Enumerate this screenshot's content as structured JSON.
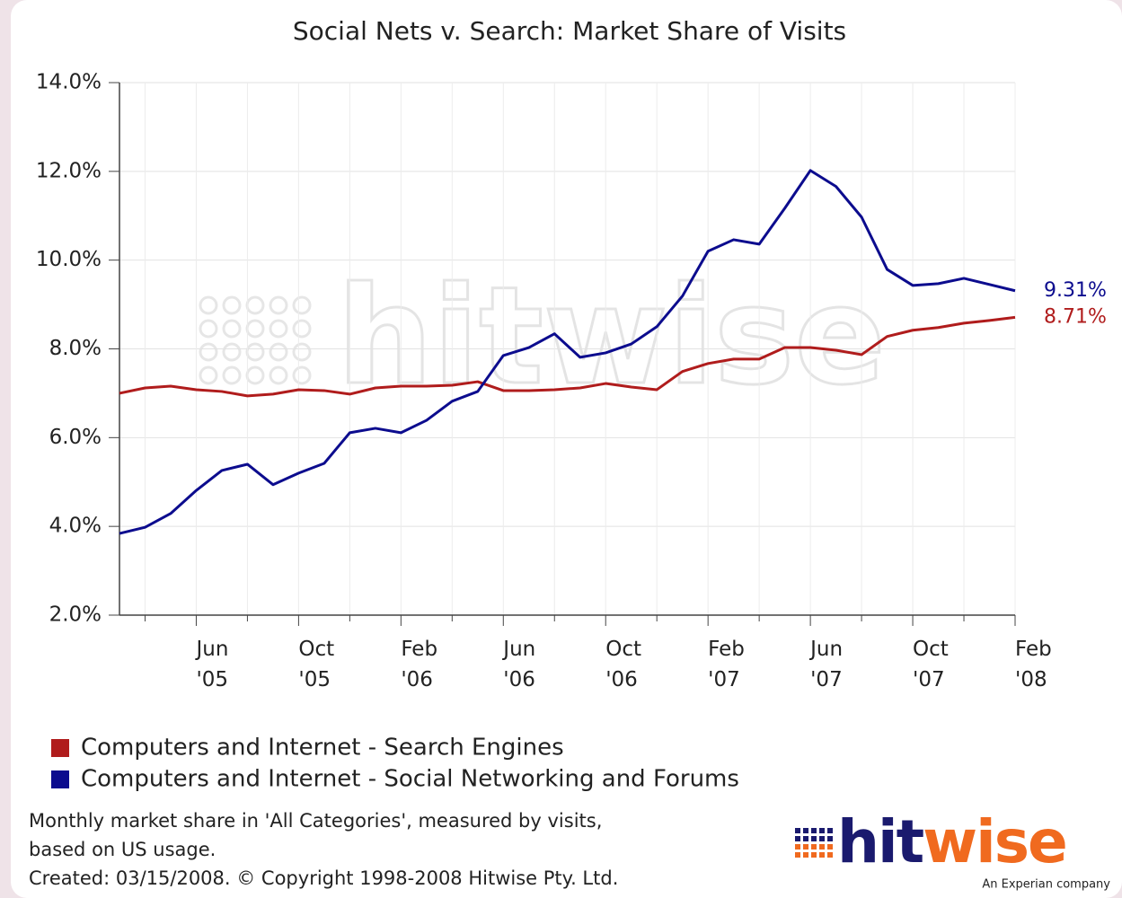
{
  "chart_data": {
    "type": "line",
    "title": "Social Nets v. Search: Market Share of Visits",
    "categories": [
      null,
      null,
      null,
      "Jun '05",
      null,
      null,
      null,
      "Oct '05",
      null,
      null,
      null,
      "Feb '06",
      null,
      null,
      null,
      "Jun '06",
      null,
      null,
      null,
      "Oct '06",
      null,
      null,
      null,
      "Feb '07",
      null,
      null,
      null,
      "Jun '07",
      null,
      null,
      null,
      "Oct '07",
      null,
      null,
      null,
      "Feb '08"
    ],
    "series": [
      {
        "name": "Computers and Internet - Search Engines",
        "color": "#b01c1c",
        "values": [
          7.0,
          7.12,
          7.16,
          7.08,
          7.04,
          6.94,
          6.98,
          7.08,
          7.06,
          6.98,
          7.12,
          7.16,
          7.16,
          7.18,
          7.26,
          7.06,
          7.06,
          7.08,
          7.12,
          7.22,
          7.14,
          7.08,
          7.49,
          7.67,
          7.77,
          7.77,
          8.03,
          8.03,
          7.97,
          7.87,
          8.28,
          8.42,
          8.48,
          8.58,
          8.64,
          8.71
        ],
        "value_labels": [
          null,
          null,
          null,
          null,
          null,
          null,
          null,
          null,
          null,
          null,
          null,
          null,
          null,
          null,
          null,
          null,
          null,
          null,
          null,
          null,
          null,
          null,
          null,
          null,
          null,
          null,
          null,
          null,
          null,
          null,
          null,
          null,
          null,
          null,
          null,
          "8.71%"
        ]
      },
      {
        "name": "Computers and Internet - Social Networking and Forums",
        "color": "#0c0c8e",
        "values": [
          3.84,
          3.98,
          4.29,
          4.81,
          5.26,
          5.4,
          4.94,
          5.2,
          5.42,
          6.11,
          6.21,
          6.11,
          6.39,
          6.82,
          7.04,
          7.85,
          8.03,
          8.34,
          7.81,
          7.91,
          8.11,
          8.5,
          9.19,
          10.2,
          10.46,
          10.36,
          11.17,
          12.02,
          11.66,
          10.97,
          9.79,
          9.43,
          9.47,
          9.59,
          9.45,
          9.31
        ],
        "value_labels": [
          null,
          null,
          null,
          null,
          null,
          null,
          null,
          null,
          null,
          null,
          null,
          null,
          null,
          null,
          null,
          null,
          null,
          null,
          null,
          null,
          null,
          null,
          null,
          null,
          null,
          null,
          null,
          null,
          null,
          null,
          null,
          null,
          null,
          null,
          null,
          "9.31%"
        ]
      }
    ],
    "ylim": [
      2,
      14
    ],
    "yticks": [
      {
        "value": 2,
        "label": "2.0%"
      },
      {
        "value": 4,
        "label": "4.0%"
      },
      {
        "value": 6,
        "label": "6.0%"
      },
      {
        "value": 8,
        "label": "8.0%"
      },
      {
        "value": 10,
        "label": "10.0%"
      },
      {
        "value": 12,
        "label": "12.0%"
      },
      {
        "value": 14,
        "label": "14.0%"
      }
    ],
    "grid": true,
    "watermark": "hitwise",
    "notes": [
      "Monthly market share in 'All Categories', measured by visits,",
      "based on US usage.",
      "Created: 03/15/2008. © Copyright 1998-2008 Hitwise Pty. Ltd."
    ],
    "logo": {
      "name": "hitwise",
      "tagline": "An Experian company"
    }
  }
}
